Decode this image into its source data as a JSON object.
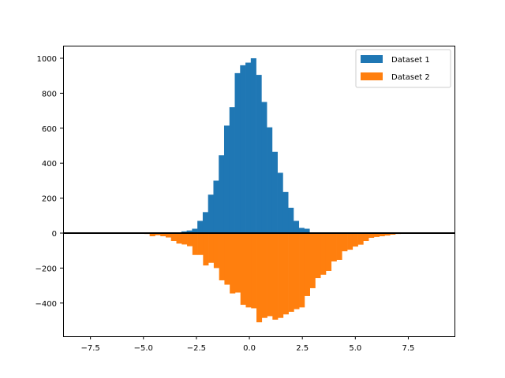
{
  "chart_data": {
    "type": "bar",
    "subtype": "histogram",
    "title": "",
    "xlabel": "",
    "ylabel": "",
    "xlim": [
      -8.79,
      9.68
    ],
    "ylim": [
      -590,
      1072
    ],
    "grid": false,
    "legend_position": "upper right",
    "xticks": [
      -7.5,
      -5.0,
      -2.5,
      0.0,
      2.5,
      5.0,
      7.5
    ],
    "xtick_labels": [
      "−7.5",
      "−5.0",
      "−2.5",
      "0.0",
      "2.5",
      "5.0",
      "7.5"
    ],
    "yticks": [
      -400,
      -200,
      0,
      200,
      400,
      600,
      800,
      1000
    ],
    "ytick_labels": [
      "−400",
      "−200",
      "0",
      "200",
      "400",
      "600",
      "800",
      "1000"
    ],
    "hline": {
      "y": 0,
      "color": "#000000"
    },
    "series": [
      {
        "name": "Dataset 1",
        "color": "#1f77b4",
        "bin_start": -3.21,
        "bin_width": 0.252,
        "values": [
          10,
          15,
          25,
          70,
          120,
          220,
          300,
          445,
          615,
          720,
          915,
          960,
          975,
          1000,
          905,
          750,
          605,
          465,
          345,
          235,
          145,
          70,
          30,
          25
        ]
      },
      {
        "name": "Dataset 2",
        "color": "#ff7f0e",
        "bin_start": -5.21,
        "bin_width": 0.252,
        "values": [
          -3,
          -5,
          -18,
          -12,
          -18,
          -25,
          -45,
          -60,
          -65,
          -75,
          -125,
          -125,
          -185,
          -170,
          -200,
          -270,
          -295,
          -345,
          -340,
          -410,
          -425,
          -430,
          -510,
          -485,
          -475,
          -495,
          -485,
          -465,
          -450,
          -435,
          -425,
          -360,
          -315,
          -257,
          -238,
          -216,
          -162,
          -153,
          -104,
          -95,
          -77,
          -66,
          -45,
          -27,
          -22,
          -18,
          -14,
          -9,
          -5,
          -4
        ]
      }
    ]
  },
  "legend": {
    "items": [
      {
        "label": "Dataset 1",
        "color": "#1f77b4"
      },
      {
        "label": "Dataset 2",
        "color": "#ff7f0e"
      }
    ]
  }
}
